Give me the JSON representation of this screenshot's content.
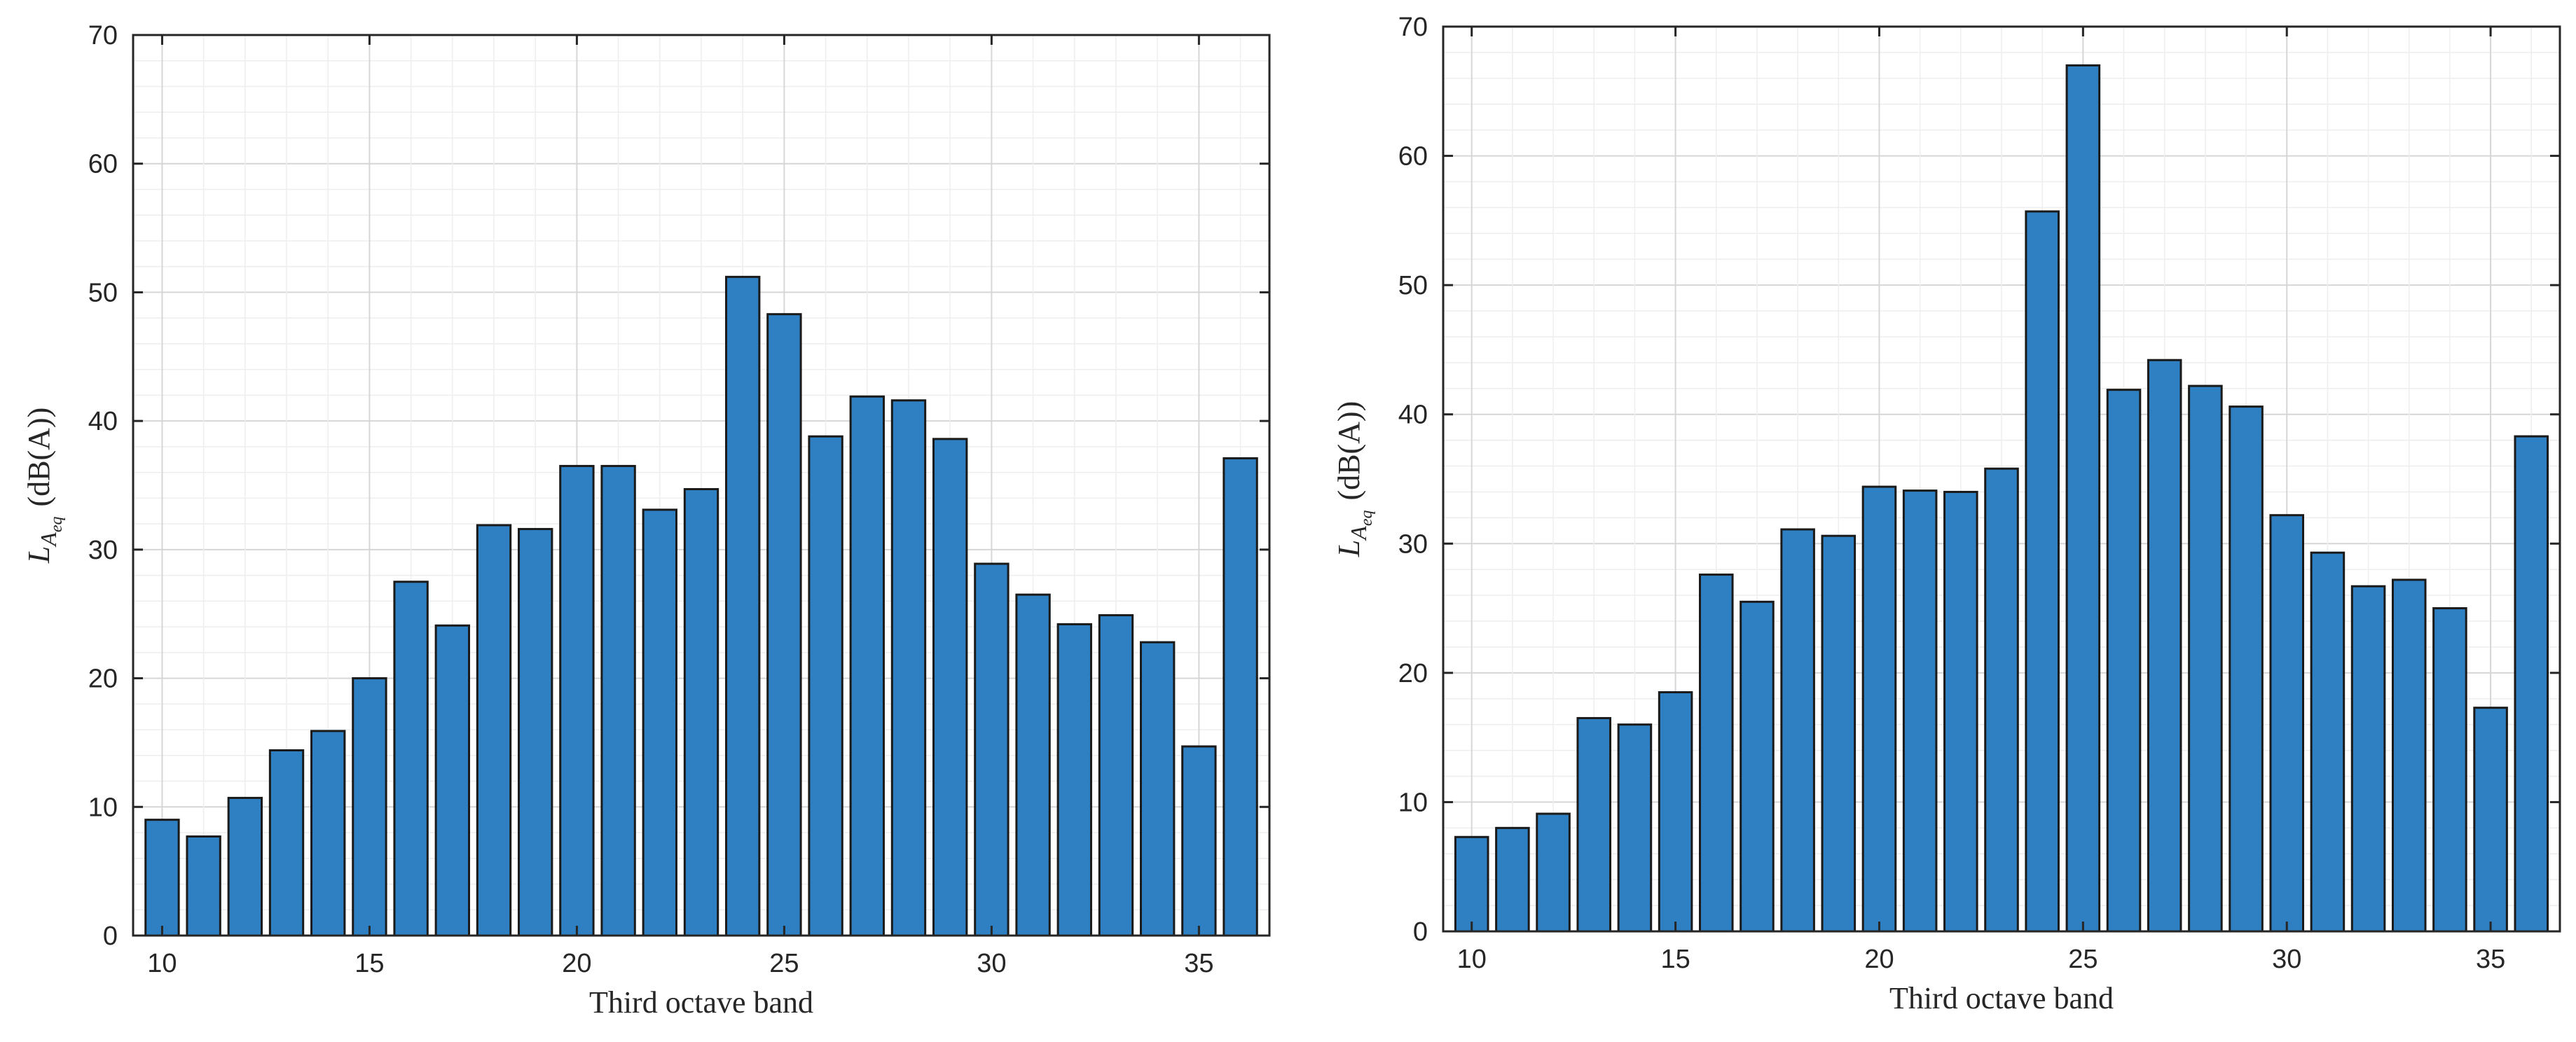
{
  "chart_data": [
    {
      "type": "bar",
      "x": [
        10,
        11,
        12,
        13,
        14,
        15,
        16,
        17,
        18,
        19,
        20,
        21,
        22,
        23,
        24,
        25,
        26,
        27,
        28,
        29,
        30,
        31,
        32,
        33,
        34,
        35,
        36
      ],
      "values": [
        9,
        7.7,
        10.7,
        14.4,
        15.9,
        20,
        27.5,
        24.1,
        31.9,
        31.6,
        36.5,
        36.5,
        33.1,
        34.7,
        51.2,
        48.3,
        38.8,
        41.9,
        41.6,
        38.6,
        28.9,
        26.5,
        24.2,
        24.9,
        22.8,
        14.7,
        37.1
      ],
      "xlabel": "Third octave band",
      "ylabel_main": "L",
      "ylabel_sub": "A",
      "ylabel_subsub": "eq",
      "ylabel_unit": "(dB(A))",
      "xticks": [
        10,
        15,
        20,
        25,
        30,
        35
      ],
      "yticks": [
        0,
        10,
        20,
        30,
        40,
        50,
        60,
        70
      ],
      "xlim": [
        9.3,
        36.7
      ],
      "ylim": [
        0,
        70
      ],
      "grid": "on",
      "bar_color": "#2e80c2",
      "edge_color": "#1a1a1a"
    },
    {
      "type": "bar",
      "x": [
        10,
        11,
        12,
        13,
        14,
        15,
        16,
        17,
        18,
        19,
        20,
        21,
        22,
        23,
        24,
        25,
        26,
        27,
        28,
        29,
        30,
        31,
        32,
        33,
        34,
        35,
        36
      ],
      "values": [
        7.3,
        8,
        9.1,
        16.5,
        16,
        18.5,
        27.6,
        25.5,
        31.1,
        30.6,
        34.4,
        34.1,
        34,
        35.8,
        55.7,
        67,
        41.9,
        44.2,
        42.2,
        40.6,
        32.2,
        29.3,
        26.7,
        27.2,
        25,
        17.3,
        38.3
      ],
      "xlabel": "Third octave band",
      "ylabel_main": "L",
      "ylabel_sub": "A",
      "ylabel_subsub": "eq",
      "ylabel_unit": "(dB(A))",
      "xticks": [
        10,
        15,
        20,
        25,
        30,
        35
      ],
      "yticks": [
        0,
        10,
        20,
        30,
        40,
        50,
        60,
        70
      ],
      "xlim": [
        9.3,
        36.7
      ],
      "ylim": [
        0,
        70
      ],
      "grid": "on",
      "bar_color": "#2e80c2",
      "edge_color": "#1a1a1a"
    }
  ]
}
